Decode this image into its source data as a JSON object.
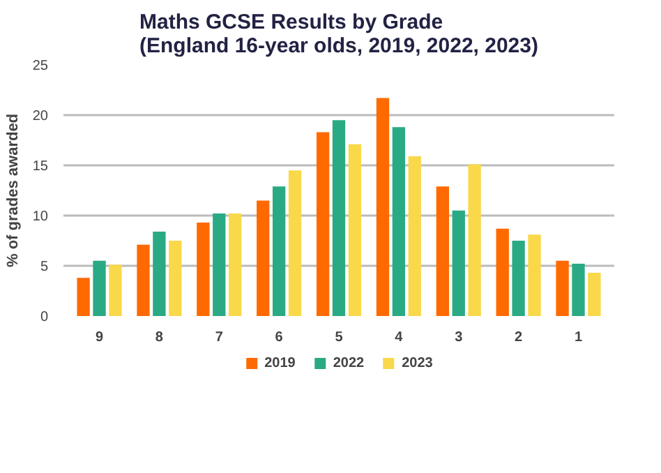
{
  "chart_data": {
    "type": "bar",
    "title": "Maths GCSE Results by Grade\n(England 16-year olds, 2019, 2022, 2023)",
    "ylabel": "% of grades awarded",
    "categories": [
      "9",
      "8",
      "7",
      "6",
      "5",
      "4",
      "3",
      "2",
      "1"
    ],
    "series": [
      {
        "name": "2019",
        "color": "#ff6a00",
        "values": [
          3.8,
          7.1,
          9.3,
          11.5,
          18.3,
          21.7,
          12.9,
          8.7,
          5.5
        ]
      },
      {
        "name": "2022",
        "color": "#2aaa84",
        "values": [
          5.5,
          8.4,
          10.2,
          12.9,
          19.5,
          18.8,
          10.5,
          7.5,
          5.2
        ]
      },
      {
        "name": "2023",
        "color": "#f9d84a",
        "values": [
          5.1,
          7.5,
          10.2,
          14.5,
          17.1,
          15.9,
          15.1,
          8.1,
          4.3
        ]
      }
    ],
    "ylim": [
      0,
      25
    ],
    "yticks": [
      0,
      5,
      10,
      15,
      20,
      25
    ],
    "grid": "y",
    "legend": "bottom"
  }
}
